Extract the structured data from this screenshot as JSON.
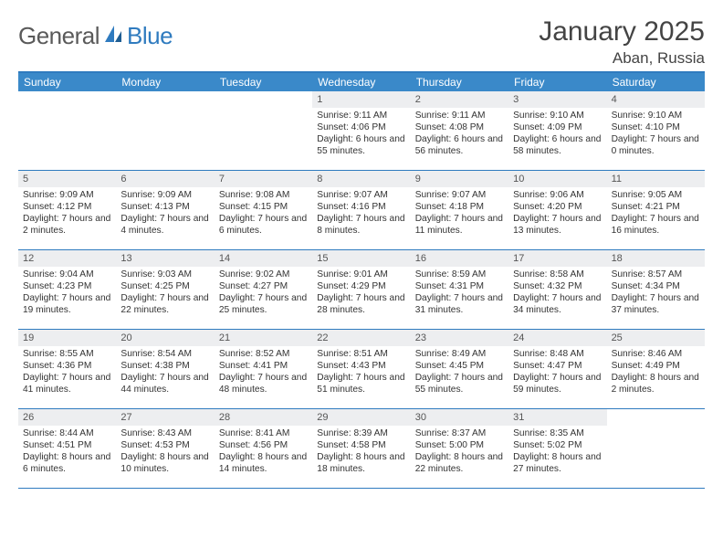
{
  "brand": {
    "general": "General",
    "blue": "Blue"
  },
  "title": "January 2025",
  "location": "Aban, Russia",
  "day_names": [
    "Sunday",
    "Monday",
    "Tuesday",
    "Wednesday",
    "Thursday",
    "Friday",
    "Saturday"
  ],
  "colors": {
    "header_bg": "#3a89c9",
    "rule": "#2f7bbf",
    "daynum_bg": "#edeef0",
    "text": "#333333",
    "title_text": "#444444",
    "logo_gray": "#5a5a5a",
    "logo_blue": "#2f7bbf"
  },
  "weeks": [
    [
      {
        "day": "",
        "sunrise": "",
        "sunset": "",
        "daylight": "",
        "empty": true
      },
      {
        "day": "",
        "sunrise": "",
        "sunset": "",
        "daylight": "",
        "empty": true
      },
      {
        "day": "",
        "sunrise": "",
        "sunset": "",
        "daylight": "",
        "empty": true
      },
      {
        "day": "1",
        "sunrise": "Sunrise: 9:11 AM",
        "sunset": "Sunset: 4:06 PM",
        "daylight": "Daylight: 6 hours and 55 minutes."
      },
      {
        "day": "2",
        "sunrise": "Sunrise: 9:11 AM",
        "sunset": "Sunset: 4:08 PM",
        "daylight": "Daylight: 6 hours and 56 minutes."
      },
      {
        "day": "3",
        "sunrise": "Sunrise: 9:10 AM",
        "sunset": "Sunset: 4:09 PM",
        "daylight": "Daylight: 6 hours and 58 minutes."
      },
      {
        "day": "4",
        "sunrise": "Sunrise: 9:10 AM",
        "sunset": "Sunset: 4:10 PM",
        "daylight": "Daylight: 7 hours and 0 minutes."
      }
    ],
    [
      {
        "day": "5",
        "sunrise": "Sunrise: 9:09 AM",
        "sunset": "Sunset: 4:12 PM",
        "daylight": "Daylight: 7 hours and 2 minutes."
      },
      {
        "day": "6",
        "sunrise": "Sunrise: 9:09 AM",
        "sunset": "Sunset: 4:13 PM",
        "daylight": "Daylight: 7 hours and 4 minutes."
      },
      {
        "day": "7",
        "sunrise": "Sunrise: 9:08 AM",
        "sunset": "Sunset: 4:15 PM",
        "daylight": "Daylight: 7 hours and 6 minutes."
      },
      {
        "day": "8",
        "sunrise": "Sunrise: 9:07 AM",
        "sunset": "Sunset: 4:16 PM",
        "daylight": "Daylight: 7 hours and 8 minutes."
      },
      {
        "day": "9",
        "sunrise": "Sunrise: 9:07 AM",
        "sunset": "Sunset: 4:18 PM",
        "daylight": "Daylight: 7 hours and 11 minutes."
      },
      {
        "day": "10",
        "sunrise": "Sunrise: 9:06 AM",
        "sunset": "Sunset: 4:20 PM",
        "daylight": "Daylight: 7 hours and 13 minutes."
      },
      {
        "day": "11",
        "sunrise": "Sunrise: 9:05 AM",
        "sunset": "Sunset: 4:21 PM",
        "daylight": "Daylight: 7 hours and 16 minutes."
      }
    ],
    [
      {
        "day": "12",
        "sunrise": "Sunrise: 9:04 AM",
        "sunset": "Sunset: 4:23 PM",
        "daylight": "Daylight: 7 hours and 19 minutes."
      },
      {
        "day": "13",
        "sunrise": "Sunrise: 9:03 AM",
        "sunset": "Sunset: 4:25 PM",
        "daylight": "Daylight: 7 hours and 22 minutes."
      },
      {
        "day": "14",
        "sunrise": "Sunrise: 9:02 AM",
        "sunset": "Sunset: 4:27 PM",
        "daylight": "Daylight: 7 hours and 25 minutes."
      },
      {
        "day": "15",
        "sunrise": "Sunrise: 9:01 AM",
        "sunset": "Sunset: 4:29 PM",
        "daylight": "Daylight: 7 hours and 28 minutes."
      },
      {
        "day": "16",
        "sunrise": "Sunrise: 8:59 AM",
        "sunset": "Sunset: 4:31 PM",
        "daylight": "Daylight: 7 hours and 31 minutes."
      },
      {
        "day": "17",
        "sunrise": "Sunrise: 8:58 AM",
        "sunset": "Sunset: 4:32 PM",
        "daylight": "Daylight: 7 hours and 34 minutes."
      },
      {
        "day": "18",
        "sunrise": "Sunrise: 8:57 AM",
        "sunset": "Sunset: 4:34 PM",
        "daylight": "Daylight: 7 hours and 37 minutes."
      }
    ],
    [
      {
        "day": "19",
        "sunrise": "Sunrise: 8:55 AM",
        "sunset": "Sunset: 4:36 PM",
        "daylight": "Daylight: 7 hours and 41 minutes."
      },
      {
        "day": "20",
        "sunrise": "Sunrise: 8:54 AM",
        "sunset": "Sunset: 4:38 PM",
        "daylight": "Daylight: 7 hours and 44 minutes."
      },
      {
        "day": "21",
        "sunrise": "Sunrise: 8:52 AM",
        "sunset": "Sunset: 4:41 PM",
        "daylight": "Daylight: 7 hours and 48 minutes."
      },
      {
        "day": "22",
        "sunrise": "Sunrise: 8:51 AM",
        "sunset": "Sunset: 4:43 PM",
        "daylight": "Daylight: 7 hours and 51 minutes."
      },
      {
        "day": "23",
        "sunrise": "Sunrise: 8:49 AM",
        "sunset": "Sunset: 4:45 PM",
        "daylight": "Daylight: 7 hours and 55 minutes."
      },
      {
        "day": "24",
        "sunrise": "Sunrise: 8:48 AM",
        "sunset": "Sunset: 4:47 PM",
        "daylight": "Daylight: 7 hours and 59 minutes."
      },
      {
        "day": "25",
        "sunrise": "Sunrise: 8:46 AM",
        "sunset": "Sunset: 4:49 PM",
        "daylight": "Daylight: 8 hours and 2 minutes."
      }
    ],
    [
      {
        "day": "26",
        "sunrise": "Sunrise: 8:44 AM",
        "sunset": "Sunset: 4:51 PM",
        "daylight": "Daylight: 8 hours and 6 minutes."
      },
      {
        "day": "27",
        "sunrise": "Sunrise: 8:43 AM",
        "sunset": "Sunset: 4:53 PM",
        "daylight": "Daylight: 8 hours and 10 minutes."
      },
      {
        "day": "28",
        "sunrise": "Sunrise: 8:41 AM",
        "sunset": "Sunset: 4:56 PM",
        "daylight": "Daylight: 8 hours and 14 minutes."
      },
      {
        "day": "29",
        "sunrise": "Sunrise: 8:39 AM",
        "sunset": "Sunset: 4:58 PM",
        "daylight": "Daylight: 8 hours and 18 minutes."
      },
      {
        "day": "30",
        "sunrise": "Sunrise: 8:37 AM",
        "sunset": "Sunset: 5:00 PM",
        "daylight": "Daylight: 8 hours and 22 minutes."
      },
      {
        "day": "31",
        "sunrise": "Sunrise: 8:35 AM",
        "sunset": "Sunset: 5:02 PM",
        "daylight": "Daylight: 8 hours and 27 minutes."
      },
      {
        "day": "",
        "sunrise": "",
        "sunset": "",
        "daylight": "",
        "empty": true
      }
    ]
  ]
}
